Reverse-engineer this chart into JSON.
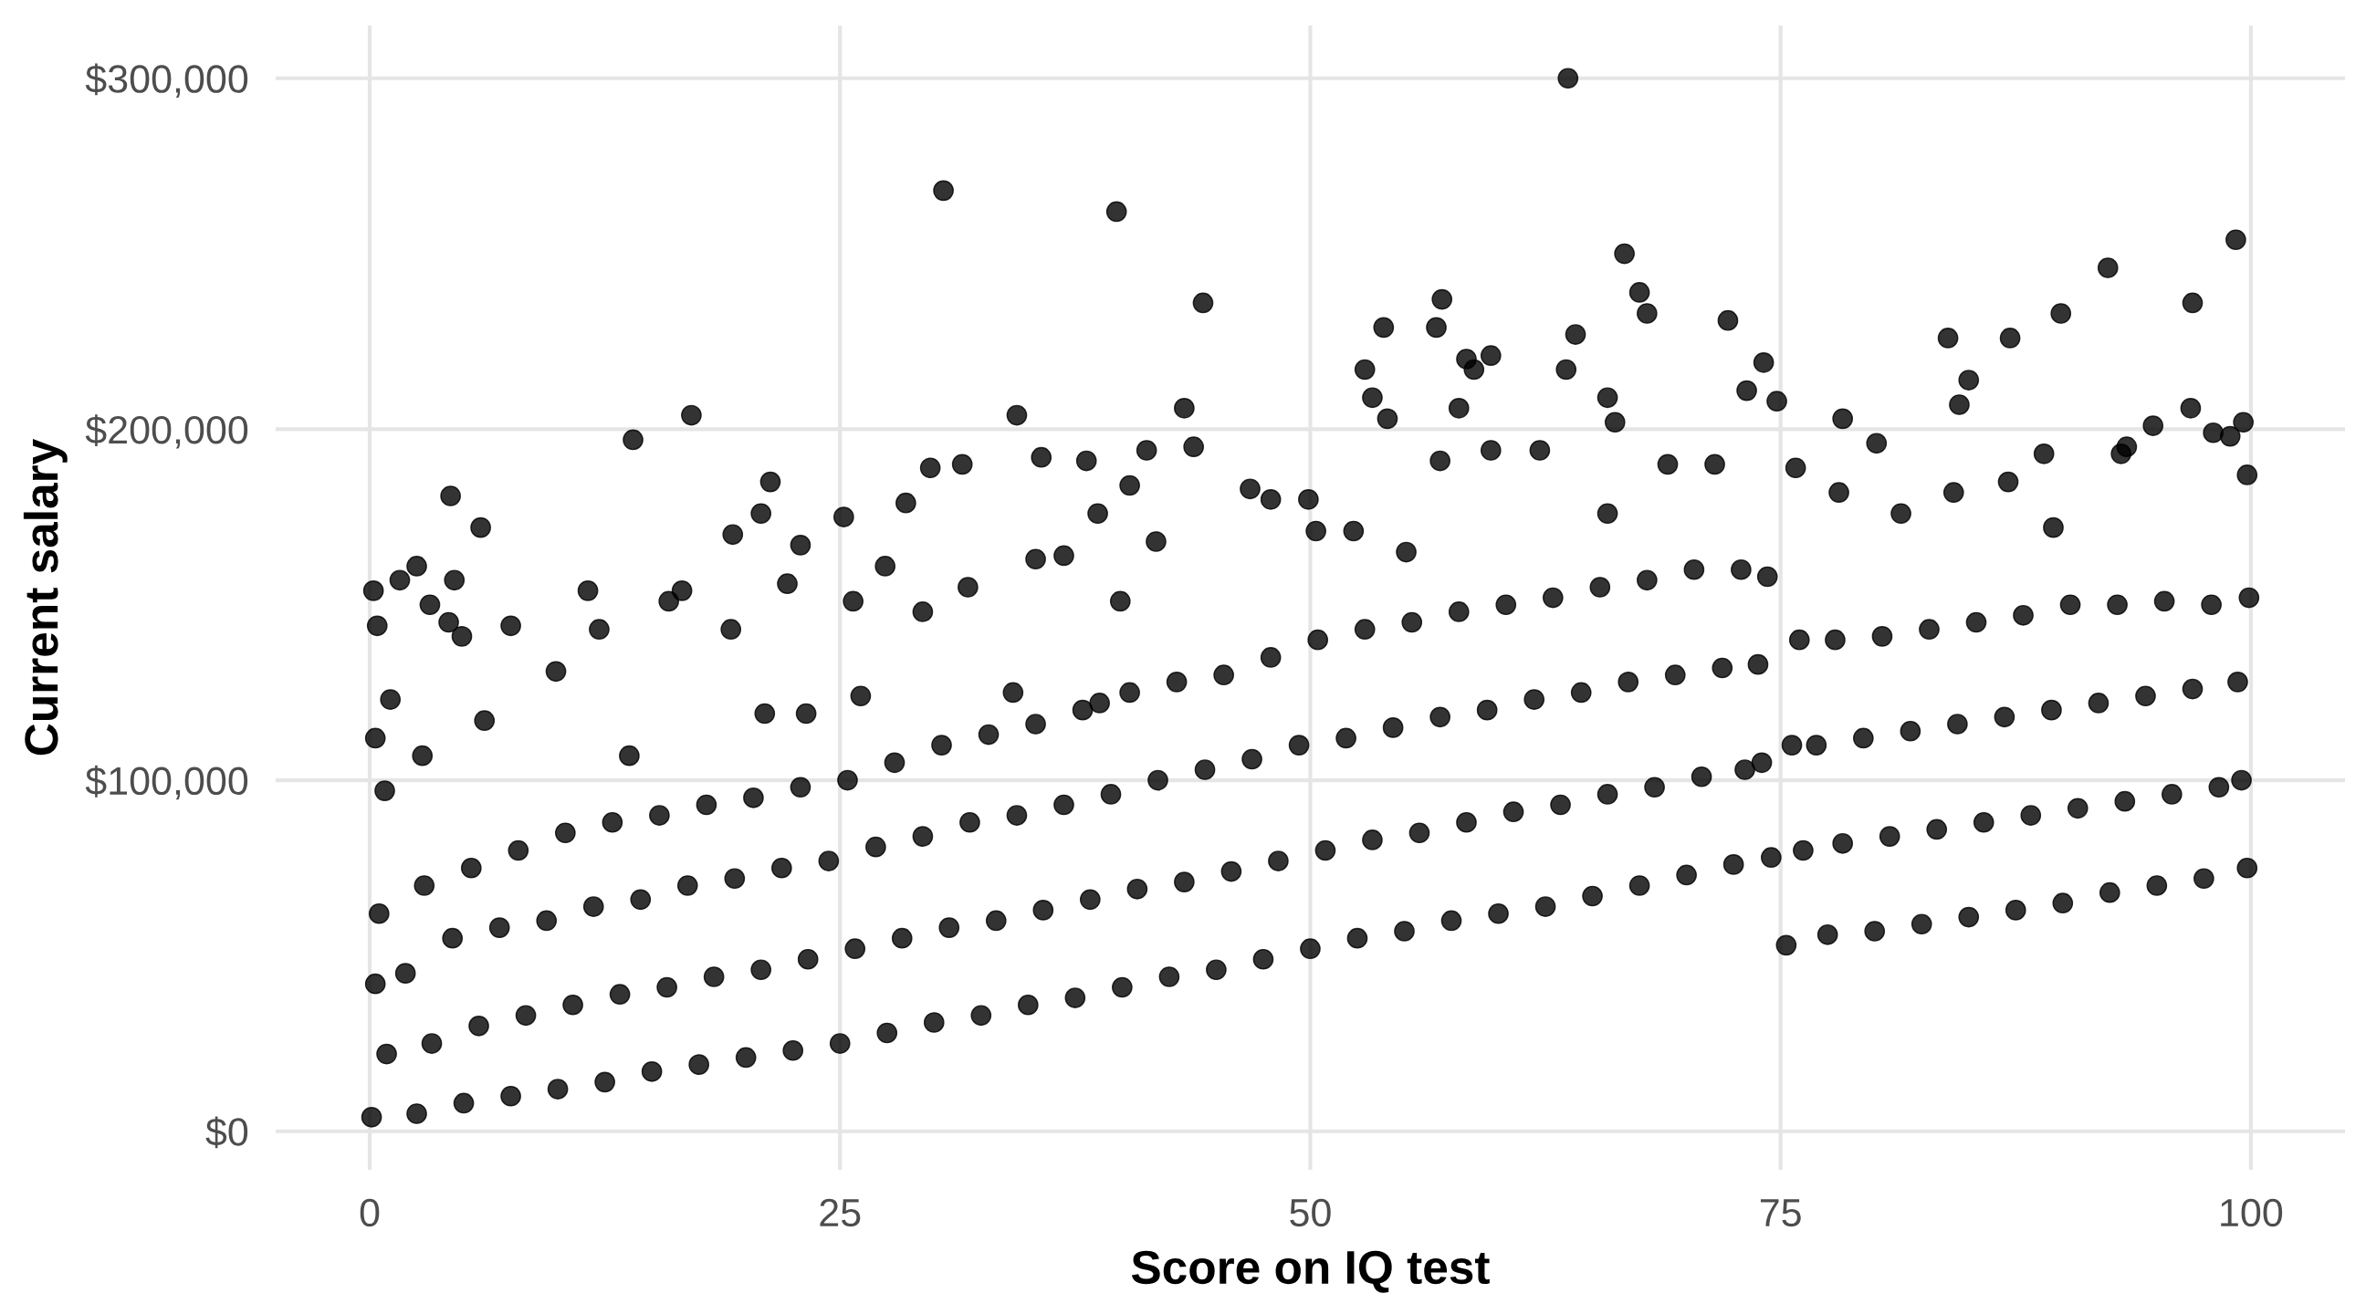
{
  "chart_data": {
    "type": "scatter",
    "xlabel": "Score on IQ test",
    "ylabel": "Current salary",
    "color": "#000000",
    "marker": "circle",
    "grid": true,
    "xlim": [
      -5,
      105
    ],
    "ylim": [
      -11000,
      315000
    ],
    "xticks": [
      0,
      25,
      50,
      75,
      100
    ],
    "yticks": [
      {
        "value": 0,
        "label": "$0"
      },
      {
        "value": 100000,
        "label": "$100,000"
      },
      {
        "value": 200000,
        "label": "$200,000"
      },
      {
        "value": 300000,
        "label": "$300,000"
      }
    ],
    "x": [
      0.1,
      0.9,
      0.3,
      0.5,
      2.5,
      3.3,
      1.9,
      2.9,
      5,
      5.8,
      4.4,
      5.4,
      7.5,
      8.3,
      6.9,
      7.9,
      10,
      10.8,
      9.4,
      10.4,
      12.5,
      13.3,
      11.9,
      12.9,
      15,
      15.8,
      14.4,
      15.4,
      17.5,
      18.3,
      16.9,
      17.9,
      20,
      20.8,
      19.4,
      20.4,
      22.5,
      23.3,
      21.9,
      22.9,
      25,
      25.8,
      24.4,
      25.4,
      27.5,
      28.3,
      26.9,
      27.9,
      30,
      30.8,
      29.4,
      30.4,
      32.5,
      33.3,
      31.9,
      32.9,
      35,
      35.8,
      34.4,
      35.4,
      37.5,
      38.3,
      36.9,
      37.9,
      40,
      40.8,
      39.4,
      40.4,
      42.5,
      43.3,
      41.9,
      42.9,
      45,
      45.8,
      44.4,
      45.4,
      47.5,
      48.3,
      46.9,
      47.9,
      50,
      50.8,
      49.4,
      50.4,
      52.5,
      53.3,
      51.9,
      52.9,
      55,
      55.8,
      54.4,
      55.4,
      57.5,
      58.3,
      56.9,
      57.9,
      60,
      60.8,
      59.4,
      60.4,
      62.5,
      63.3,
      61.9,
      62.9,
      65,
      65.8,
      64.4,
      65.4,
      67.5,
      68.3,
      66.9,
      67.9,
      70,
      70.8,
      69.4,
      70.4,
      72.5,
      73.1,
      71.9,
      72.9,
      74.5,
      74.0,
      73.8,
      74.3,
      75.3,
      76.2,
      75.6,
      76.0,
      77.5,
      78.3,
      76.9,
      77.9,
      80,
      80.8,
      79.4,
      80.4,
      82.5,
      83.3,
      81.9,
      82.9,
      85,
      85.8,
      84.4,
      85.4,
      87.5,
      88.3,
      86.9,
      87.9,
      90,
      90.8,
      89.4,
      90.4,
      92.5,
      93.3,
      91.9,
      92.9,
      95,
      95.8,
      94.4,
      95.4,
      97.5,
      98.3,
      96.9,
      97.9,
      99.8,
      99.5,
      99.3,
      99.9,
      0.3,
      0.8,
      1.1,
      2.8,
      6.1,
      9.9,
      13.8,
      21.0,
      26.1,
      23.2,
      34.2,
      38.8,
      4.5,
      3.2,
      4.2,
      4.9,
      11.6,
      12.2,
      15.9,
      16.6,
      19.2,
      22.2,
      25.7,
      27.4,
      29.4,
      31.8,
      35.4,
      36.9,
      39.9,
      41.8,
      49.9,
      50.3,
      56.9,
      59.6,
      62.2,
      69.0,
      71.5,
      75.8,
      78.1,
      84.2,
      87.1,
      93.1,
      99.8,
      81.4,
      89.5,
      46.8,
      47.9,
      52.3,
      55.1,
      65.8,
      30.5,
      39.7,
      17.1,
      14.0,
      34.4,
      43.3,
      4.3,
      5.9,
      21.3,
      29.8,
      31.5,
      35.7,
      38.1,
      41.3,
      20.8,
      0.2,
      0.4,
      2.5,
      1.6,
      25.2,
      28.5,
      19.3,
      22.9,
      38.7,
      40.4,
      7.5,
      63.7,
      66.7,
      67.5,
      67.9,
      99.2,
      92.4,
      96.9,
      89.9,
      83.9,
      87.2,
      85.0,
      84.5,
      72.2,
      74.1,
      74.8,
      73.2,
      57.0,
      56.7,
      53.9,
      52.9,
      53.3,
      54.1,
      58.3,
      59.6,
      58.7,
      57.9,
      64.1,
      63.6,
      65.8,
      66.2,
      44.3,
      78.3,
      80.1,
      96.8,
      94.8,
      98.0,
      99.6,
      89.0,
      93.4,
      98.9,
      43.8
    ],
    "values": [
      4000,
      22000,
      42000,
      62000,
      5000,
      25000,
      45000,
      70000,
      8000,
      30000,
      55000,
      75000,
      10000,
      33000,
      58000,
      80000,
      12000,
      36000,
      60000,
      85000,
      14000,
      39000,
      64000,
      88000,
      17000,
      41000,
      66000,
      90000,
      19000,
      44000,
      70000,
      93000,
      21000,
      46000,
      72000,
      95000,
      23000,
      49000,
      75000,
      98000,
      25000,
      52000,
      77000,
      100000,
      28000,
      55000,
      81000,
      105000,
      31000,
      58000,
      84000,
      110000,
      33000,
      60000,
      88000,
      113000,
      36000,
      63000,
      90000,
      116000,
      38000,
      66000,
      93000,
      120000,
      41000,
      69000,
      96000,
      125000,
      44000,
      71000,
      100000,
      128000,
      46000,
      74000,
      103000,
      130000,
      49000,
      77000,
      106000,
      135000,
      52000,
      80000,
      110000,
      140000,
      55000,
      83000,
      112000,
      143000,
      57000,
      85000,
      115000,
      145000,
      60000,
      88000,
      118000,
      148000,
      62000,
      91000,
      120000,
      150000,
      64000,
      93000,
      123000,
      152000,
      67000,
      96000,
      125000,
      155000,
      70000,
      98000,
      128000,
      157000,
      73000,
      101000,
      130000,
      160000,
      76000,
      103000,
      132000,
      160000,
      78000,
      105000,
      133000,
      158000,
      53000,
      80000,
      110000,
      140000,
      56000,
      82000,
      110000,
      140000,
      57000,
      84000,
      112000,
      141000,
      59000,
      86000,
      114000,
      143000,
      61000,
      88000,
      116000,
      145000,
      63000,
      90000,
      118000,
      147000,
      65000,
      92000,
      120000,
      150000,
      68000,
      94000,
      122000,
      150000,
      70000,
      96000,
      124000,
      151000,
      72000,
      98000,
      126000,
      150000,
      75000,
      100000,
      128000,
      152000,
      112000,
      97000,
      123000,
      107000,
      117000,
      131000,
      107000,
      119000,
      124000,
      119000,
      125000,
      122000,
      157000,
      150000,
      145000,
      141000,
      154000,
      143000,
      151000,
      154000,
      143000,
      156000,
      151000,
      161000,
      148000,
      155000,
      163000,
      164000,
      151000,
      168000,
      180000,
      171000,
      191000,
      194000,
      194000,
      190000,
      190000,
      189000,
      182000,
      182000,
      185000,
      193000,
      187000,
      176000,
      172000,
      183000,
      180000,
      171000,
      165000,
      176000,
      268000,
      262000,
      204000,
      197000,
      204000,
      206000,
      181000,
      172000,
      185000,
      189000,
      190000,
      192000,
      191000,
      194000,
      176000,
      154000,
      144000,
      161000,
      157000,
      175000,
      179000,
      170000,
      167000,
      176000,
      184000,
      144000,
      300000,
      250000,
      239000,
      233000,
      254000,
      246000,
      236000,
      233000,
      226000,
      226000,
      214000,
      207000,
      231000,
      219000,
      208000,
      211000,
      237000,
      229000,
      229000,
      217000,
      209000,
      203000,
      220000,
      221000,
      217000,
      206000,
      227000,
      217000,
      209000,
      202000,
      236000,
      203000,
      196000,
      206000,
      201000,
      199000,
      202000,
      193000,
      195000,
      198000,
      195000
    ]
  }
}
